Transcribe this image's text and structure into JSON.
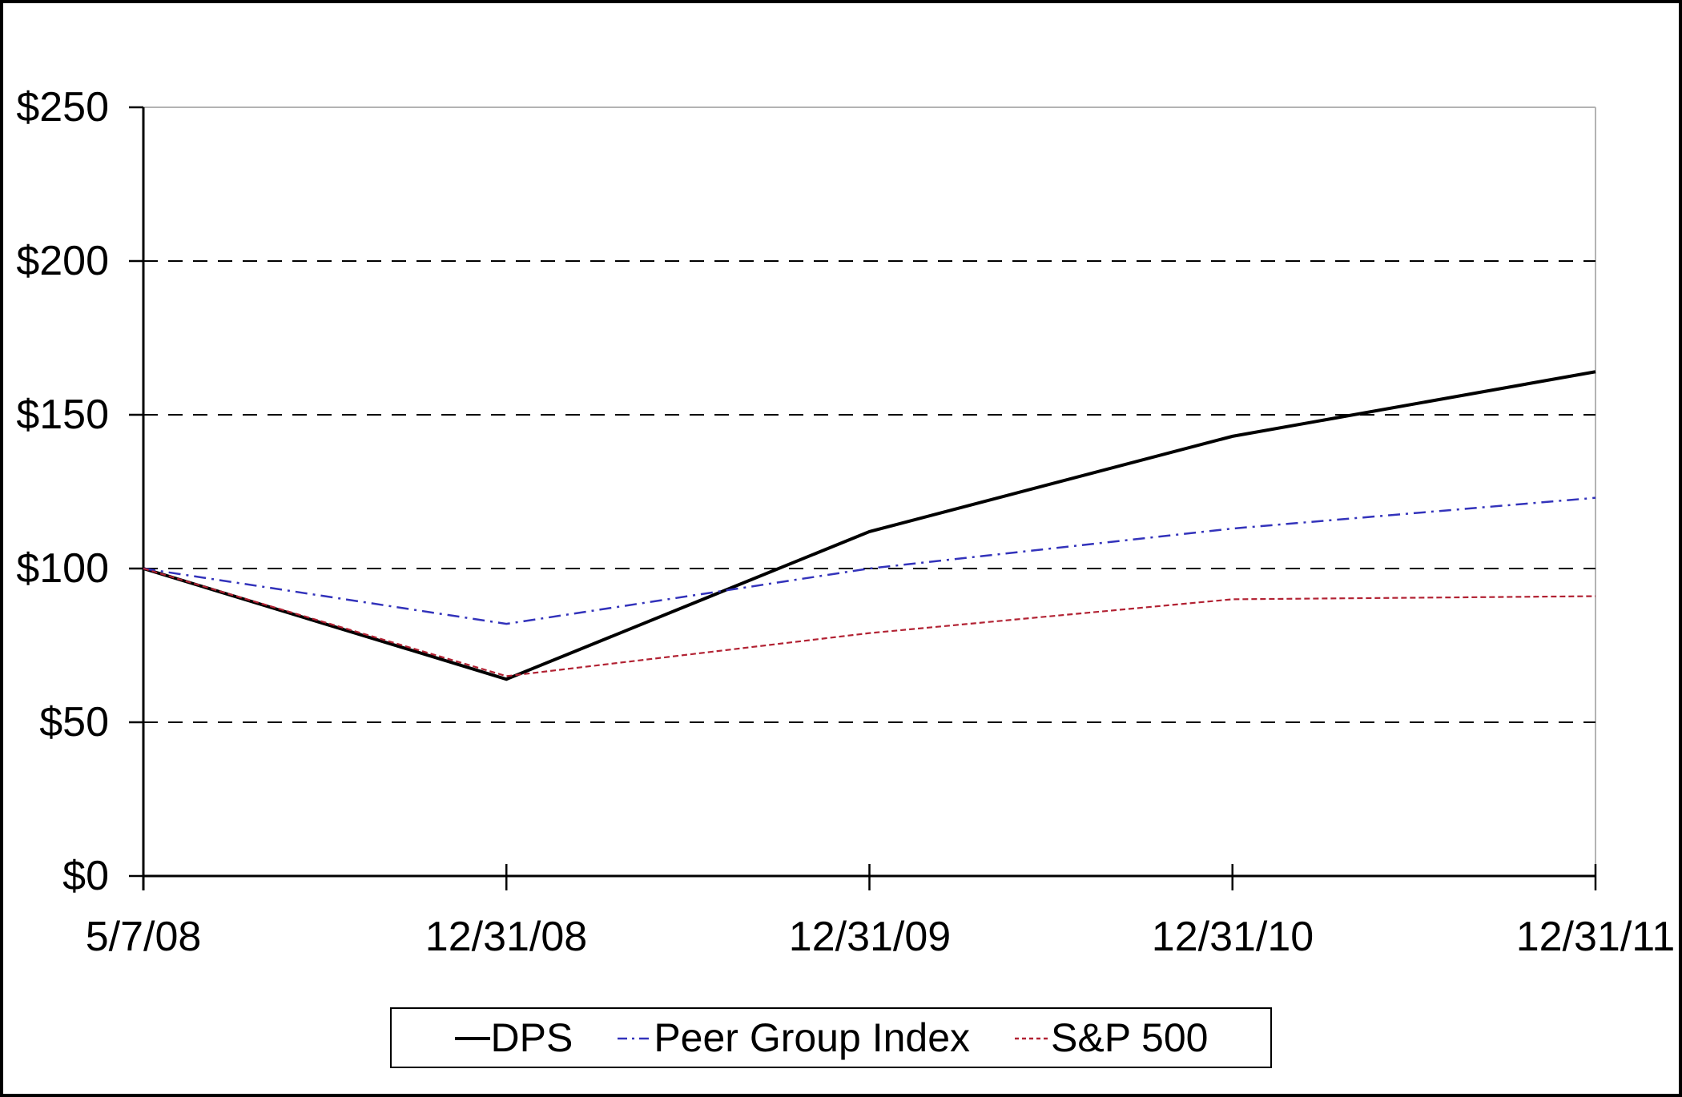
{
  "chart_data": {
    "type": "line",
    "categories": [
      "5/7/08",
      "12/31/08",
      "12/31/09",
      "12/31/10",
      "12/31/11"
    ],
    "series": [
      {
        "name": "DPS",
        "color": "#000000",
        "line_style": "solid",
        "values": [
          100,
          64,
          112,
          143,
          164
        ]
      },
      {
        "name": "Peer Group Index",
        "color": "#3333bb",
        "line_style": "dash-dot",
        "values": [
          100,
          82,
          100,
          113,
          123
        ]
      },
      {
        "name": "S&P 500",
        "color": "#b22233",
        "line_style": "dotted",
        "values": [
          100,
          65,
          79,
          90,
          91
        ]
      }
    ],
    "ylim": [
      0,
      250
    ],
    "y_tick_step": 50,
    "y_tick_labels": [
      "$0",
      "$50",
      "$100",
      "$150",
      "$200",
      "$250"
    ],
    "xlabel": "",
    "ylabel": "",
    "grid": "horizontal-dashed",
    "legend_position": "bottom-center"
  },
  "colors": {
    "background": "#ffffff",
    "axis": "#000000",
    "grid": "#000000",
    "frame": "#b3b3b3",
    "border": "#000000"
  }
}
